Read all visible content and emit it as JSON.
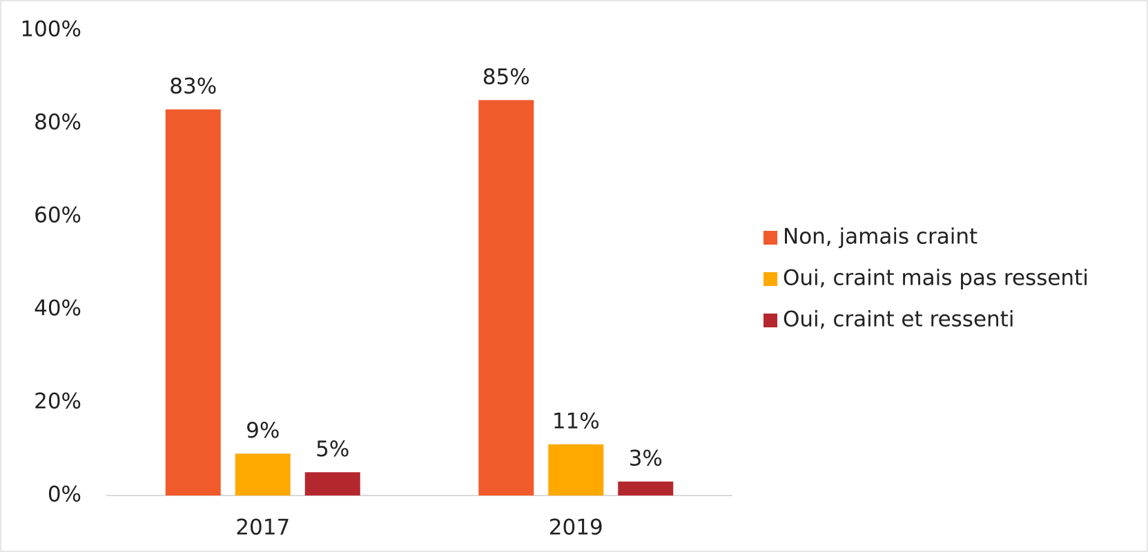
{
  "chart_data": {
    "type": "bar",
    "categories": [
      "2017",
      "2019"
    ],
    "series": [
      {
        "name": "Non, jamais craint",
        "color": "#f15a2b",
        "values": [
          83,
          85
        ],
        "value_labels": [
          "83%",
          "85%"
        ]
      },
      {
        "name": "Oui, craint mais pas ressenti",
        "color": "#ffa800",
        "values": [
          9,
          11
        ],
        "value_labels": [
          "9%",
          "11%"
        ]
      },
      {
        "name": "Oui, craint et ressenti",
        "color": "#b5272e",
        "values": [
          5,
          3
        ],
        "value_labels": [
          "5%",
          "3%"
        ]
      }
    ],
    "ylim": [
      0,
      100
    ],
    "yticks": [
      {
        "value": 0,
        "label": "0%"
      },
      {
        "value": 20,
        "label": "20%"
      },
      {
        "value": 40,
        "label": "40%"
      },
      {
        "value": 60,
        "label": "60%"
      },
      {
        "value": 80,
        "label": "80%"
      },
      {
        "value": 100,
        "label": "100%"
      }
    ],
    "grid": false,
    "legend": "right"
  }
}
